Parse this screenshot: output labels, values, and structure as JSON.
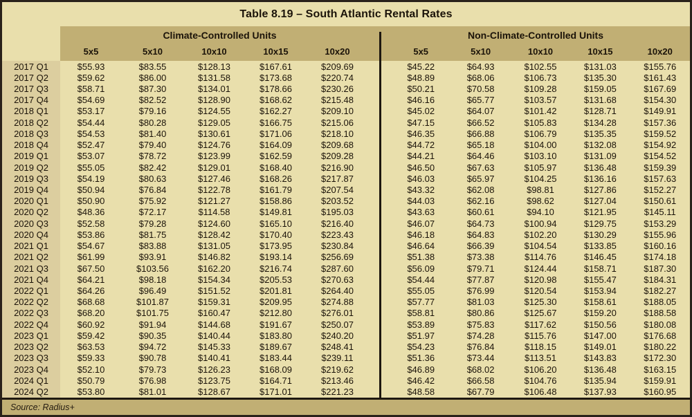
{
  "title": "Table 8.19 – South Atlantic Rental Rates",
  "source_label": "Source: Radius+",
  "colors": {
    "page_cream": "#E9DFAC",
    "band_tan": "#C1AF74",
    "label_column_tan": "#DCCE9F",
    "border_dark": "#29211a",
    "text_dark": "#1b1309"
  },
  "header": {
    "groups": [
      {
        "label": "Climate-Controlled Units",
        "sizes": [
          "5x5",
          "5x10",
          "10x10",
          "10x15",
          "10x20"
        ]
      },
      {
        "label": "Non-Climate-Controlled Units",
        "sizes": [
          "5x5",
          "5x10",
          "10x10",
          "10x15",
          "10x20"
        ]
      }
    ]
  },
  "chart_data": {
    "type": "table",
    "title": "Table 8.19 – South Atlantic Rental Rates",
    "column_groups": [
      "Climate-Controlled Units",
      "Non-Climate-Controlled Units"
    ],
    "unit_sizes": [
      "5x5",
      "5x10",
      "10x10",
      "10x15",
      "10x20"
    ],
    "source": "Radius+",
    "rows": [
      {
        "quarter": "2017 Q1",
        "climate_controlled": [
          "$55.93",
          "$83.55",
          "$128.13",
          "$167.61",
          "$209.69"
        ],
        "non_climate_controlled": [
          "$45.22",
          "$64.93",
          "$102.55",
          "$131.03",
          "$155.76"
        ]
      },
      {
        "quarter": "2017 Q2",
        "climate_controlled": [
          "$59.62",
          "$86.00",
          "$131.58",
          "$173.68",
          "$220.74"
        ],
        "non_climate_controlled": [
          "$48.89",
          "$68.06",
          "$106.73",
          "$135.30",
          "$161.43"
        ]
      },
      {
        "quarter": "2017 Q3",
        "climate_controlled": [
          "$58.71",
          "$87.30",
          "$134.01",
          "$178.66",
          "$230.26"
        ],
        "non_climate_controlled": [
          "$50.21",
          "$70.58",
          "$109.28",
          "$159.05",
          "$167.69"
        ]
      },
      {
        "quarter": "2017 Q4",
        "climate_controlled": [
          "$54.69",
          "$82.52",
          "$128.90",
          "$168.62",
          "$215.48"
        ],
        "non_climate_controlled": [
          "$46.16",
          "$65.77",
          "$103.57",
          "$131.68",
          "$154.30"
        ]
      },
      {
        "quarter": "2018 Q1",
        "climate_controlled": [
          "$53.17",
          "$79.16",
          "$124.55",
          "$162.27",
          "$209.10"
        ],
        "non_climate_controlled": [
          "$45.02",
          "$64.07",
          "$101.42",
          "$128.71",
          "$149.91"
        ]
      },
      {
        "quarter": "2018 Q2",
        "climate_controlled": [
          "$54.44",
          "$80.28",
          "$129.05",
          "$166.75",
          "$215.06"
        ],
        "non_climate_controlled": [
          "$47.15",
          "$66.52",
          "$105.83",
          "$134.28",
          "$157.36"
        ]
      },
      {
        "quarter": "2018 Q3",
        "climate_controlled": [
          "$54.53",
          "$81.40",
          "$130.61",
          "$171.06",
          "$218.10"
        ],
        "non_climate_controlled": [
          "$46.35",
          "$66.88",
          "$106.79",
          "$135.35",
          "$159.52"
        ]
      },
      {
        "quarter": "2018 Q4",
        "climate_controlled": [
          "$52.47",
          "$79.40",
          "$124.76",
          "$164.09",
          "$209.68"
        ],
        "non_climate_controlled": [
          "$44.72",
          "$65.18",
          "$104.00",
          "$132.08",
          "$154.92"
        ]
      },
      {
        "quarter": "2019 Q1",
        "climate_controlled": [
          "$53.07",
          "$78.72",
          "$123.99",
          "$162.59",
          "$209.28"
        ],
        "non_climate_controlled": [
          "$44.21",
          "$64.46",
          "$103.10",
          "$131.09",
          "$154.52"
        ]
      },
      {
        "quarter": "2019 Q2",
        "climate_controlled": [
          "$55.05",
          "$82.42",
          "$129.01",
          "$168.40",
          "$216.90"
        ],
        "non_climate_controlled": [
          "$46.50",
          "$67.63",
          "$105.97",
          "$136.48",
          "$159.39"
        ]
      },
      {
        "quarter": "2019 Q3",
        "climate_controlled": [
          "$54.19",
          "$80.63",
          "$127.46",
          "$168.26",
          "$217.87"
        ],
        "non_climate_controlled": [
          "$46.03",
          "$65.97",
          "$104.25",
          "$136.16",
          "$157.63"
        ]
      },
      {
        "quarter": "2019 Q4",
        "climate_controlled": [
          "$50.94",
          "$76.84",
          "$122.78",
          "$161.79",
          "$207.54"
        ],
        "non_climate_controlled": [
          "$43.32",
          "$62.08",
          "$98.81",
          "$127.86",
          "$152.27"
        ]
      },
      {
        "quarter": "2020 Q1",
        "climate_controlled": [
          "$50.90",
          "$75.92",
          "$121.27",
          "$158.86",
          "$203.52"
        ],
        "non_climate_controlled": [
          "$44.03",
          "$62.16",
          "$98.62",
          "$127.04",
          "$150.61"
        ]
      },
      {
        "quarter": "2020 Q2",
        "climate_controlled": [
          "$48.36",
          "$72.17",
          "$114.58",
          "$149.81",
          "$195.03"
        ],
        "non_climate_controlled": [
          "$43.63",
          "$60.61",
          "$94.10",
          "$121.95",
          "$145.11"
        ]
      },
      {
        "quarter": "2020 Q3",
        "climate_controlled": [
          "$52.58",
          "$79.28",
          "$124.60",
          "$165.10",
          "$216.40"
        ],
        "non_climate_controlled": [
          "$46.07",
          "$64.73",
          "$100.94",
          "$129.75",
          "$153.29"
        ]
      },
      {
        "quarter": "2020 Q4",
        "climate_controlled": [
          "$53.86",
          "$81.75",
          "$128.42",
          "$170.40",
          "$223.43"
        ],
        "non_climate_controlled": [
          "$46.18",
          "$64.83",
          "$102.20",
          "$130.29",
          "$155.96"
        ]
      },
      {
        "quarter": "2021 Q1",
        "climate_controlled": [
          "$54.67",
          "$83.88",
          "$131.05",
          "$173.95",
          "$230.84"
        ],
        "non_climate_controlled": [
          "$46.64",
          "$66.39",
          "$104.54",
          "$133.85",
          "$160.16"
        ]
      },
      {
        "quarter": "2021 Q2",
        "climate_controlled": [
          "$61.99",
          "$93.91",
          "$146.82",
          "$193.14",
          "$256.69"
        ],
        "non_climate_controlled": [
          "$51.38",
          "$73.38",
          "$114.76",
          "$146.45",
          "$174.18"
        ]
      },
      {
        "quarter": "2021 Q3",
        "climate_controlled": [
          "$67.50",
          "$103.56",
          "$162.20",
          "$216.74",
          "$287.60"
        ],
        "non_climate_controlled": [
          "$56.09",
          "$79.71",
          "$124.44",
          "$158.71",
          "$187.30"
        ]
      },
      {
        "quarter": "2021 Q4",
        "climate_controlled": [
          "$64.21",
          "$98.18",
          "$154.34",
          "$205.53",
          "$270.63"
        ],
        "non_climate_controlled": [
          "$54.44",
          "$77.87",
          "$120.98",
          "$155.47",
          "$184.31"
        ]
      },
      {
        "quarter": "2022 Q1",
        "climate_controlled": [
          "$64.26",
          "$96.49",
          "$151.52",
          "$201.81",
          "$264.40"
        ],
        "non_climate_controlled": [
          "$55.05",
          "$76.99",
          "$120.54",
          "$153.94",
          "$182.27"
        ]
      },
      {
        "quarter": "2022 Q2",
        "climate_controlled": [
          "$68.68",
          "$101.87",
          "$159.31",
          "$209.95",
          "$274.88"
        ],
        "non_climate_controlled": [
          "$57.77",
          "$81.03",
          "$125.30",
          "$158.61",
          "$188.05"
        ]
      },
      {
        "quarter": "2022 Q3",
        "climate_controlled": [
          "$68.20",
          "$101.75",
          "$160.47",
          "$212.80",
          "$276.01"
        ],
        "non_climate_controlled": [
          "$58.81",
          "$80.86",
          "$125.67",
          "$159.20",
          "$188.58"
        ]
      },
      {
        "quarter": "2022 Q4",
        "climate_controlled": [
          "$60.92",
          "$91.94",
          "$144.68",
          "$191.67",
          "$250.07"
        ],
        "non_climate_controlled": [
          "$53.89",
          "$75.83",
          "$117.62",
          "$150.56",
          "$180.08"
        ]
      },
      {
        "quarter": "2023 Q1",
        "climate_controlled": [
          "$59.42",
          "$90.35",
          "$140.44",
          "$183.80",
          "$240.20"
        ],
        "non_climate_controlled": [
          "$51.97",
          "$74.28",
          "$115.76",
          "$147.00",
          "$176.68"
        ]
      },
      {
        "quarter": "2023 Q2",
        "climate_controlled": [
          "$63.53",
          "$94.72",
          "$145.33",
          "$189.67",
          "$248.41"
        ],
        "non_climate_controlled": [
          "$54.23",
          "$76.84",
          "$118.15",
          "$149.01",
          "$180.22"
        ]
      },
      {
        "quarter": "2023 Q3",
        "climate_controlled": [
          "$59.33",
          "$90.78",
          "$140.41",
          "$183.44",
          "$239.11"
        ],
        "non_climate_controlled": [
          "$51.36",
          "$73.44",
          "$113.51",
          "$143.83",
          "$172.30"
        ]
      },
      {
        "quarter": "2023 Q4",
        "climate_controlled": [
          "$52.10",
          "$79.73",
          "$126.23",
          "$168.09",
          "$219.62"
        ],
        "non_climate_controlled": [
          "$46.89",
          "$68.02",
          "$106.20",
          "$136.48",
          "$163.15"
        ]
      },
      {
        "quarter": "2024 Q1",
        "climate_controlled": [
          "$50.79",
          "$76.98",
          "$123.75",
          "$164.71",
          "$213.46"
        ],
        "non_climate_controlled": [
          "$46.42",
          "$66.58",
          "$104.76",
          "$135.94",
          "$159.91"
        ]
      },
      {
        "quarter": "2024 Q2",
        "climate_controlled": [
          "$53.80",
          "$81.01",
          "$128.67",
          "$171.01",
          "$221.23"
        ],
        "non_climate_controlled": [
          "$48.58",
          "$67.79",
          "$106.48",
          "$137.93",
          "$160.95"
        ]
      }
    ]
  }
}
